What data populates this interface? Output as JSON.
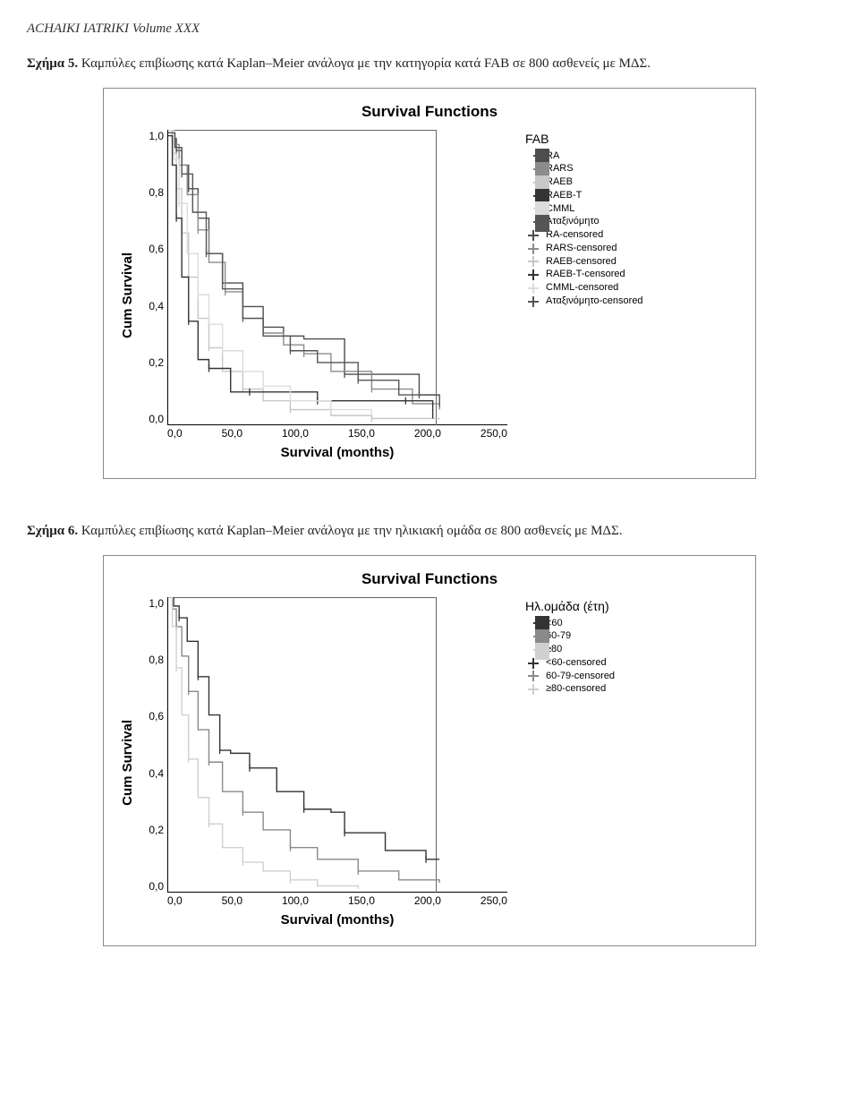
{
  "journal_header": "ACHAIKI IATRIKI Volume XXX",
  "fig5": {
    "label": "Σχήμα 5.",
    "caption": "Καμπύλες επιβίωσης κατά Kaplan–Meier ανάλογα με την κατηγορία κατά FAB σε 800 ασθενείς με ΜΔΣ."
  },
  "fig6": {
    "label": "Σχήμα 6.",
    "caption": "Καμπύλες επιβίωσης κατά Kaplan–Meier ανάλογα με την ηλικιακή ομάδα σε 800 ασθενείς με ΜΔΣ."
  },
  "chart_common": {
    "title": "Survival Functions",
    "ylabel": "Cum Survival",
    "xlabel": "Survival (months)",
    "yticks": [
      "1,0",
      "0,8",
      "0,6",
      "0,4",
      "0,2",
      "0,0"
    ],
    "xticks": [
      "0,0",
      "50,0",
      "100,0",
      "150,0",
      "200,0",
      "250,0"
    ],
    "xlim": [
      0,
      250
    ],
    "ylim": [
      0,
      1
    ],
    "frame_right_at_x": 200,
    "title_fontsize": 17,
    "label_fontsize": 15,
    "tick_fontsize": 12,
    "frame_color": "#666666",
    "axis_color": "#000000",
    "background_color": "#ffffff",
    "line_width": 1.4
  },
  "chart5": {
    "legend_title": "FAB",
    "legend": [
      {
        "label": "RA",
        "type": "step",
        "color": "#4d4d4d"
      },
      {
        "label": "RARS",
        "type": "step",
        "color": "#8c8c8c"
      },
      {
        "label": "RAEB",
        "type": "step",
        "color": "#c7c7c7"
      },
      {
        "label": "RAEB-T",
        "type": "step",
        "color": "#343434"
      },
      {
        "label": "CMML",
        "type": "step",
        "color": "#dcdcdc"
      },
      {
        "label": "Αταξινόμητο",
        "type": "step",
        "color": "#555555"
      },
      {
        "label": "RA-censored",
        "type": "cross",
        "color": "#4d4d4d"
      },
      {
        "label": "RARS-censored",
        "type": "cross",
        "color": "#8c8c8c"
      },
      {
        "label": "RAEB-censored",
        "type": "cross",
        "color": "#c7c7c7"
      },
      {
        "label": "RAEB-T-censored",
        "type": "cross",
        "color": "#343434"
      },
      {
        "label": "CMML-censored",
        "type": "cross",
        "color": "#dcdcdc"
      },
      {
        "label": "Αταξινόμητο-censored",
        "type": "cross",
        "color": "#555555"
      }
    ],
    "series": [
      {
        "name": "RA",
        "color": "#4d4d4d",
        "points": [
          [
            0,
            1.0
          ],
          [
            3,
            0.97
          ],
          [
            6,
            0.93
          ],
          [
            10,
            0.88
          ],
          [
            15,
            0.8
          ],
          [
            22,
            0.7
          ],
          [
            30,
            0.58
          ],
          [
            40,
            0.48
          ],
          [
            55,
            0.4
          ],
          [
            70,
            0.33
          ],
          [
            85,
            0.3
          ],
          [
            100,
            0.29
          ],
          [
            130,
            0.17
          ],
          [
            150,
            0.17
          ],
          [
            185,
            0.1
          ],
          [
            200,
            0.1
          ]
        ]
      },
      {
        "name": "RARS",
        "color": "#8c8c8c",
        "points": [
          [
            0,
            1.0
          ],
          [
            4,
            0.95
          ],
          [
            8,
            0.88
          ],
          [
            14,
            0.78
          ],
          [
            22,
            0.66
          ],
          [
            30,
            0.55
          ],
          [
            42,
            0.45
          ],
          [
            55,
            0.36
          ],
          [
            70,
            0.31
          ],
          [
            85,
            0.27
          ],
          [
            100,
            0.24
          ],
          [
            120,
            0.18
          ],
          [
            150,
            0.12
          ],
          [
            180,
            0.07
          ],
          [
            200,
            0.05
          ]
        ]
      },
      {
        "name": "RAEB",
        "color": "#c7c7c7",
        "points": [
          [
            0,
            1.0
          ],
          [
            3,
            0.92
          ],
          [
            6,
            0.8
          ],
          [
            10,
            0.65
          ],
          [
            15,
            0.5
          ],
          [
            22,
            0.36
          ],
          [
            30,
            0.26
          ],
          [
            40,
            0.18
          ],
          [
            55,
            0.12
          ],
          [
            70,
            0.08
          ],
          [
            90,
            0.05
          ],
          [
            120,
            0.03
          ],
          [
            150,
            0.02
          ],
          [
            200,
            0.02
          ]
        ]
      },
      {
        "name": "RAEB-T",
        "color": "#343434",
        "points": [
          [
            0,
            0.98
          ],
          [
            3,
            0.88
          ],
          [
            6,
            0.7
          ],
          [
            10,
            0.5
          ],
          [
            15,
            0.35
          ],
          [
            22,
            0.22
          ],
          [
            30,
            0.19
          ],
          [
            46,
            0.11
          ],
          [
            60,
            0.11
          ],
          [
            85,
            0.11
          ],
          [
            110,
            0.08
          ],
          [
            160,
            0.08
          ],
          [
            175,
            0.08
          ],
          [
            195,
            0.02
          ]
        ]
      },
      {
        "name": "CMML",
        "color": "#dcdcdc",
        "points": [
          [
            0,
            1.0
          ],
          [
            4,
            0.9
          ],
          [
            8,
            0.75
          ],
          [
            14,
            0.58
          ],
          [
            22,
            0.44
          ],
          [
            30,
            0.34
          ],
          [
            40,
            0.25
          ],
          [
            55,
            0.18
          ],
          [
            70,
            0.13
          ],
          [
            90,
            0.08
          ],
          [
            120,
            0.05
          ],
          [
            150,
            0.03
          ]
        ]
      },
      {
        "name": "Αταξινόμητο",
        "color": "#555555",
        "points": [
          [
            0,
            0.99
          ],
          [
            5,
            0.94
          ],
          [
            10,
            0.85
          ],
          [
            18,
            0.72
          ],
          [
            28,
            0.58
          ],
          [
            40,
            0.46
          ],
          [
            55,
            0.36
          ],
          [
            70,
            0.3
          ],
          [
            90,
            0.25
          ],
          [
            110,
            0.21
          ],
          [
            140,
            0.15
          ],
          [
            170,
            0.1
          ],
          [
            200,
            0.06
          ]
        ]
      }
    ]
  },
  "chart6": {
    "legend_title": "Ηλ.ομάδα (έτη)",
    "legend": [
      {
        "label": "<60",
        "type": "step",
        "color": "#343434"
      },
      {
        "label": "60-79",
        "type": "step",
        "color": "#8a8a8a"
      },
      {
        "label": "≥80",
        "type": "step",
        "color": "#d0d0d0"
      },
      {
        "label": "<60-censored",
        "type": "cross",
        "color": "#343434"
      },
      {
        "label": "60-79-censored",
        "type": "cross",
        "color": "#8a8a8a"
      },
      {
        "label": "≥80-censored",
        "type": "cross",
        "color": "#d0d0d0"
      }
    ],
    "series": [
      {
        "name": "<60",
        "color": "#343434",
        "points": [
          [
            0,
            1.0
          ],
          [
            4,
            0.97
          ],
          [
            8,
            0.93
          ],
          [
            14,
            0.85
          ],
          [
            22,
            0.73
          ],
          [
            30,
            0.6
          ],
          [
            38,
            0.48
          ],
          [
            46,
            0.47
          ],
          [
            60,
            0.42
          ],
          [
            80,
            0.34
          ],
          [
            100,
            0.28
          ],
          [
            120,
            0.27
          ],
          [
            130,
            0.2
          ],
          [
            160,
            0.14
          ],
          [
            190,
            0.11
          ],
          [
            200,
            0.11
          ]
        ]
      },
      {
        "name": "60-79",
        "color": "#8a8a8a",
        "points": [
          [
            0,
            1.0
          ],
          [
            3,
            0.96
          ],
          [
            6,
            0.9
          ],
          [
            10,
            0.8
          ],
          [
            15,
            0.68
          ],
          [
            22,
            0.55
          ],
          [
            30,
            0.44
          ],
          [
            40,
            0.34
          ],
          [
            55,
            0.27
          ],
          [
            70,
            0.21
          ],
          [
            90,
            0.15
          ],
          [
            110,
            0.11
          ],
          [
            140,
            0.07
          ],
          [
            170,
            0.04
          ],
          [
            200,
            0.03
          ]
        ]
      },
      {
        "name": "≥80",
        "color": "#d0d0d0",
        "points": [
          [
            0,
            1.0
          ],
          [
            3,
            0.9
          ],
          [
            6,
            0.76
          ],
          [
            10,
            0.6
          ],
          [
            15,
            0.45
          ],
          [
            22,
            0.32
          ],
          [
            30,
            0.23
          ],
          [
            40,
            0.15
          ],
          [
            55,
            0.1
          ],
          [
            70,
            0.07
          ],
          [
            90,
            0.04
          ],
          [
            110,
            0.02
          ],
          [
            140,
            0.01
          ]
        ]
      }
    ]
  }
}
